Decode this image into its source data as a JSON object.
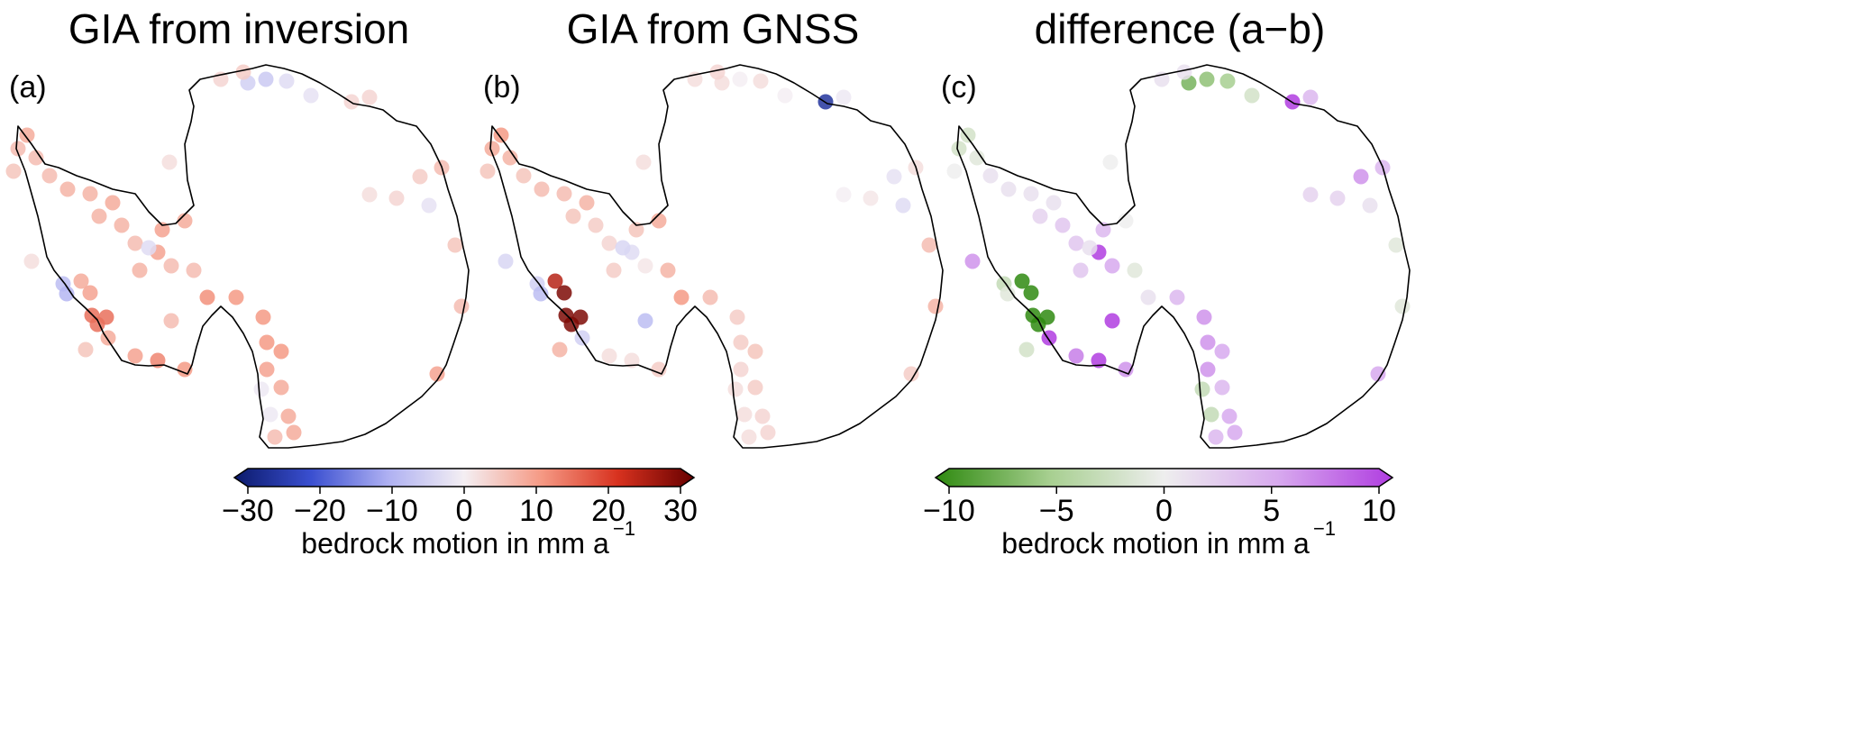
{
  "panels": [
    {
      "id": "a",
      "title": "GIA from inversion",
      "label": "(a)",
      "colormap": "uplift"
    },
    {
      "id": "b",
      "title": "GIA from GNSS",
      "label": "(b)",
      "colormap": "uplift"
    },
    {
      "id": "c",
      "title": "difference (a−b)",
      "label": "(c)",
      "colormap": "difference"
    }
  ],
  "colorbars": {
    "uplift": {
      "ticks": [
        "−30",
        "−20",
        "−10",
        "0",
        "10",
        "20",
        "30"
      ],
      "range": [
        -30,
        30
      ],
      "label": "bedrock motion in mm a",
      "label_sup": "−1",
      "colors": [
        "#0b1a6b",
        "#3a4fd0",
        "#aeb0f2",
        "#f4eff3",
        "#f59a85",
        "#d8321f",
        "#680000"
      ]
    },
    "difference": {
      "ticks": [
        "−10",
        "−5",
        "0",
        "5",
        "10"
      ],
      "range": [
        -10,
        10
      ],
      "label": "bedrock motion in mm a",
      "label_sup": "−1",
      "colors": [
        "#2f8a10",
        "#a7cf90",
        "#eeeeee",
        "#d7a9ee",
        "#b03de0"
      ]
    }
  },
  "stations": {
    "inversion_mm_per_a": [
      -6,
      -5,
      -3,
      3,
      -2,
      3,
      3,
      8,
      6,
      6,
      5,
      6,
      7,
      7,
      8,
      7,
      7,
      6,
      9,
      6,
      7,
      -3,
      9,
      8,
      6,
      11,
      10,
      10,
      10,
      10,
      9,
      8,
      -1,
      -1,
      8,
      8,
      6,
      14,
      14,
      14,
      -8,
      -9,
      8,
      9,
      2,
      9,
      12,
      10,
      8,
      6,
      5,
      9,
      6,
      5,
      6,
      4,
      3,
      2,
      -2,
      2,
      4
    ],
    "gnss_mm_per_a": [
      0,
      2,
      2,
      2,
      0,
      -1,
      -25,
      10,
      8,
      7,
      5,
      5,
      6,
      6,
      7,
      5,
      4,
      3,
      -3,
      1,
      4,
      -4,
      5,
      8,
      7,
      10,
      6,
      4,
      4,
      5,
      3,
      4,
      2,
      2,
      3,
      3,
      2,
      28,
      28,
      28,
      -5,
      -8,
      23,
      28,
      -4,
      2,
      2,
      4,
      -5,
      -8,
      7,
      4,
      7,
      6,
      2,
      -2,
      1,
      0,
      -3,
      2,
      3
    ]
  }
}
